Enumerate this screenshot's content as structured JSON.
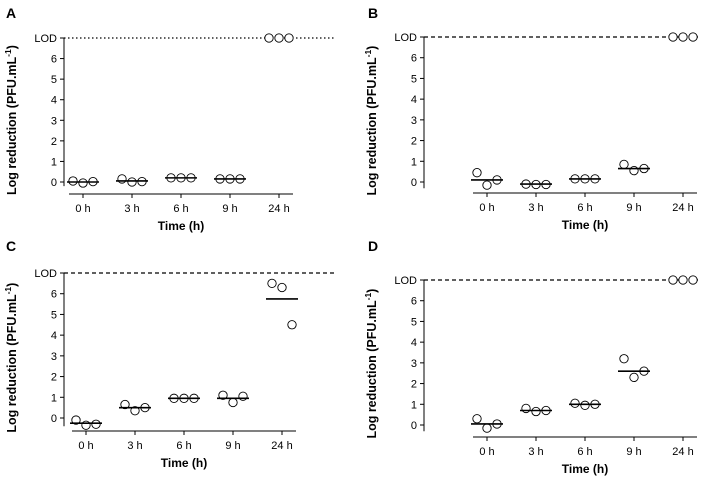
{
  "figure": {
    "title": "",
    "lod_label": "LOD"
  },
  "chart_data": [
    {
      "type": "scatter",
      "panel": "A",
      "xlabel": "Time (h)",
      "ylabel_main": "Log reduction (PFU.mL",
      "ylabel_sup": "-1",
      "ylabel_close": ")",
      "categories": [
        "0 h",
        "3 h",
        "6 h",
        "9 h",
        "24 h"
      ],
      "yticks": [
        0,
        1,
        2,
        3,
        4,
        5,
        6
      ],
      "ylim": [
        -0.2,
        7.0
      ],
      "lod": 7.0,
      "lod_style": "dotted",
      "points": [
        [
          0.05,
          -0.05,
          0.02
        ],
        [
          0.15,
          0.0,
          0.02
        ],
        [
          0.2,
          0.2,
          0.2
        ],
        [
          0.15,
          0.15,
          0.15
        ],
        [
          7.0,
          7.0,
          7.0
        ]
      ],
      "means": [
        0.0,
        0.05,
        0.2,
        0.15,
        null
      ]
    },
    {
      "type": "scatter",
      "panel": "B",
      "xlabel": "Time (h)",
      "ylabel_main": "Log reduction (PFU.mL",
      "ylabel_sup": "-1",
      "ylabel_close": ")",
      "categories": [
        "0 h",
        "3 h",
        "6 h",
        "9 h",
        "24 h"
      ],
      "yticks": [
        0,
        1,
        2,
        3,
        4,
        5,
        6
      ],
      "ylim": [
        -0.3,
        7.0
      ],
      "lod": 7.0,
      "lod_style": "dashed",
      "points": [
        [
          0.45,
          -0.15,
          0.1
        ],
        [
          -0.1,
          -0.12,
          -0.12
        ],
        [
          0.15,
          0.15,
          0.15
        ],
        [
          0.85,
          0.55,
          0.65
        ],
        [
          7.0,
          7.0,
          7.0
        ]
      ],
      "means": [
        0.1,
        -0.1,
        0.15,
        0.65,
        null
      ]
    },
    {
      "type": "scatter",
      "panel": "C",
      "xlabel": "Time (h)",
      "ylabel_main": "Log reduction (PFU.mL",
      "ylabel_sup": "-1",
      "ylabel_close": ")",
      "categories": [
        "0 h",
        "3 h",
        "6 h",
        "9 h",
        "24 h"
      ],
      "yticks": [
        0,
        1,
        2,
        3,
        4,
        5,
        6
      ],
      "ylim": [
        -0.4,
        7.0
      ],
      "lod": 7.0,
      "lod_style": "dashed",
      "points": [
        [
          -0.1,
          -0.35,
          -0.3
        ],
        [
          0.65,
          0.35,
          0.5
        ],
        [
          0.95,
          0.95,
          0.95
        ],
        [
          1.1,
          0.75,
          1.05
        ],
        [
          6.5,
          6.3,
          4.5
        ]
      ],
      "means": [
        -0.25,
        0.5,
        0.95,
        0.95,
        5.75
      ]
    },
    {
      "type": "scatter",
      "panel": "D",
      "xlabel": "Time (h)",
      "ylabel_main": "Log reduction (PFU.mL",
      "ylabel_sup": "-1",
      "ylabel_close": ")",
      "categories": [
        "0 h",
        "3 h",
        "6 h",
        "9 h",
        "24 h"
      ],
      "yticks": [
        0,
        1,
        2,
        3,
        4,
        5,
        6
      ],
      "ylim": [
        -0.3,
        7.0
      ],
      "lod": 7.0,
      "lod_style": "dashed",
      "points": [
        [
          0.3,
          -0.15,
          0.05
        ],
        [
          0.8,
          0.65,
          0.7
        ],
        [
          1.05,
          0.95,
          1.0
        ],
        [
          3.2,
          2.3,
          2.6
        ],
        [
          7.0,
          7.0,
          7.0
        ]
      ],
      "means": [
        0.05,
        0.7,
        1.0,
        2.6,
        null
      ]
    }
  ]
}
